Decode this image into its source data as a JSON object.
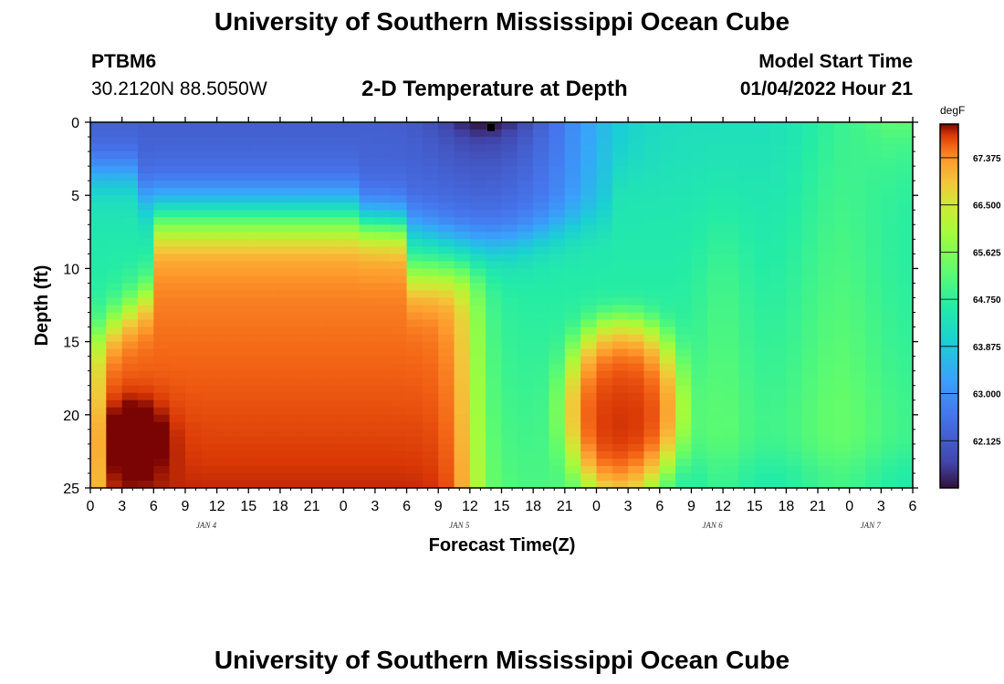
{
  "header": {
    "title": "University of Southern Mississippi Ocean Cube",
    "station_id": "PTBM6",
    "location": "30.2120N  88.5050W",
    "subtitle": "2-D Temperature at Depth",
    "model_label": "Model Start Time",
    "model_time": "01/04/2022 Hour 21"
  },
  "footer": {
    "title": "University of Southern Mississippi Ocean Cube"
  },
  "chart_data": {
    "type": "heatmap",
    "ylabel": "Depth (ft)",
    "xlabel": "Forecast Time(Z)",
    "y_ticks": [
      "0",
      "5",
      "10",
      "15",
      "20",
      "25"
    ],
    "ylim": [
      0,
      25
    ],
    "y_inverted": true,
    "xlim_hours": [
      0,
      78
    ],
    "x_ticks": [
      "0",
      "3",
      "6",
      "9",
      "12",
      "15",
      "18",
      "21",
      "0",
      "3",
      "6",
      "9",
      "12",
      "15",
      "18",
      "21",
      "0",
      "3",
      "6",
      "9",
      "12",
      "15",
      "18",
      "21",
      "0",
      "3",
      "6"
    ],
    "date_labels": [
      {
        "label": "JAN 4",
        "hour": 11
      },
      {
        "label": "JAN 5",
        "hour": 35
      },
      {
        "label": "JAN 6",
        "hour": 59
      },
      {
        "label": "JAN 7",
        "hour": 74
      }
    ],
    "colorbar": {
      "unit": "degF",
      "min": 61.25,
      "max": 68.0,
      "ticks": [
        "67.375",
        "66.500",
        "65.625",
        "64.750",
        "63.875",
        "63.000",
        "62.125"
      ]
    },
    "grid": false,
    "legend": "right",
    "marker": {
      "hour": 38,
      "depth": 0.3
    }
  }
}
